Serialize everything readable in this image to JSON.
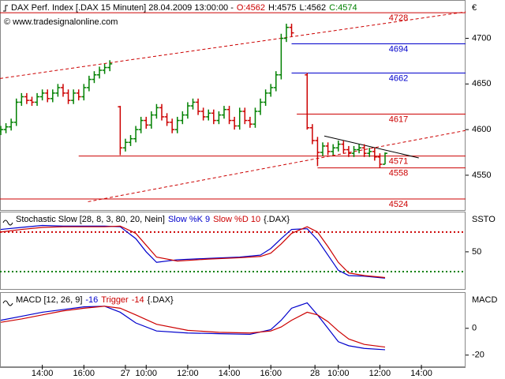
{
  "header": {
    "title": "DAX Perf. Index [.DAX  15 Minuten] 28.04.2009 13:00:00 -",
    "open": "O:4562",
    "high": "H:4575",
    "low": "L:4562",
    "close": "C:4574",
    "copyright": "© www.tradesignalonline.com"
  },
  "chart_data": [
    {
      "type": "ohlc",
      "currency": "€",
      "up_color": "#008000",
      "down_color": "#cc0000",
      "xlim": [
        -0.15,
        89.5
      ],
      "ylim": [
        4511,
        4742
      ],
      "yticks": [
        4550,
        4600,
        4650,
        4700
      ],
      "x": [
        0,
        1,
        2,
        3,
        4,
        5,
        6,
        7,
        8,
        9,
        10,
        11,
        12,
        13,
        14,
        15,
        16,
        17,
        18,
        19,
        20,
        21,
        23,
        24,
        25,
        26,
        27,
        28,
        29,
        30,
        31,
        32,
        33,
        34,
        35,
        36,
        37,
        38,
        39,
        40,
        41,
        42,
        43,
        44,
        45,
        46,
        47,
        48,
        49,
        50,
        51,
        52,
        53,
        54,
        55,
        56,
        59,
        60,
        61,
        62,
        63,
        64,
        65,
        66,
        67,
        68,
        69,
        70,
        71,
        72,
        73,
        74
      ],
      "open": [
        4598,
        4600,
        4603,
        4608,
        4630,
        4636,
        4632,
        4630,
        4636,
        4640,
        4634,
        4640,
        4646,
        4640,
        4632,
        4640,
        4636,
        4646,
        4655,
        4660,
        4665,
        4668,
        4625,
        4580,
        4586,
        4590,
        4600,
        4610,
        4605,
        4616,
        4624,
        4614,
        4608,
        4600,
        4610,
        4616,
        4626,
        4630,
        4620,
        4614,
        4618,
        4610,
        4616,
        4622,
        4610,
        4604,
        4620,
        4610,
        4606,
        4620,
        4630,
        4640,
        4646,
        4660,
        4700,
        4712,
        4660,
        4602,
        4588,
        4575,
        4582,
        4576,
        4580,
        4584,
        4578,
        4574,
        4578,
        4580,
        4574,
        4576,
        4570,
        4562
      ],
      "high": [
        4604,
        4607,
        4612,
        4634,
        4640,
        4640,
        4636,
        4640,
        4644,
        4644,
        4644,
        4650,
        4650,
        4644,
        4644,
        4644,
        4650,
        4659,
        4664,
        4669,
        4672,
        4676,
        4626,
        4590,
        4594,
        4604,
        4614,
        4614,
        4620,
        4628,
        4628,
        4618,
        4612,
        4614,
        4620,
        4630,
        4634,
        4634,
        4624,
        4622,
        4622,
        4620,
        4626,
        4626,
        4614,
        4624,
        4624,
        4614,
        4624,
        4634,
        4644,
        4650,
        4664,
        4705,
        4716,
        4716,
        4662,
        4606,
        4592,
        4586,
        4586,
        4584,
        4588,
        4588,
        4582,
        4582,
        4584,
        4584,
        4580,
        4580,
        4574,
        4575
      ],
      "low": [
        4594,
        4596,
        4599,
        4604,
        4626,
        4628,
        4626,
        4626,
        4632,
        4630,
        4630,
        4636,
        4636,
        4628,
        4628,
        4632,
        4632,
        4642,
        4651,
        4656,
        4661,
        4664,
        4572,
        4576,
        4582,
        4586,
        4596,
        4601,
        4601,
        4612,
        4610,
        4604,
        4596,
        4596,
        4606,
        4612,
        4622,
        4616,
        4610,
        4610,
        4606,
        4606,
        4612,
        4606,
        4600,
        4600,
        4606,
        4602,
        4602,
        4616,
        4626,
        4636,
        4642,
        4655,
        4696,
        4702,
        4600,
        4584,
        4560,
        4571,
        4572,
        4572,
        4576,
        4574,
        4570,
        4570,
        4574,
        4570,
        4570,
        4566,
        4558,
        4562
      ],
      "close": [
        4600,
        4603,
        4608,
        4630,
        4636,
        4632,
        4630,
        4636,
        4640,
        4634,
        4640,
        4646,
        4640,
        4632,
        4640,
        4636,
        4646,
        4655,
        4660,
        4665,
        4668,
        4672,
        4580,
        4586,
        4590,
        4600,
        4610,
        4605,
        4616,
        4624,
        4614,
        4608,
        4600,
        4610,
        4616,
        4626,
        4630,
        4620,
        4614,
        4618,
        4610,
        4616,
        4622,
        4610,
        4604,
        4620,
        4610,
        4606,
        4620,
        4630,
        4640,
        4646,
        4660,
        4700,
        4712,
        4706,
        4602,
        4588,
        4575,
        4582,
        4576,
        4580,
        4584,
        4578,
        4574,
        4578,
        4580,
        4574,
        4576,
        4570,
        4562,
        4574
      ],
      "levels": [
        {
          "value": 4728,
          "start": -0.15,
          "color": "#cc0000"
        },
        {
          "value": 4694,
          "start": 56,
          "color": "#0000cc"
        },
        {
          "value": 4662,
          "start": 56,
          "color": "#0000cc"
        },
        {
          "value": 4617,
          "start": 57,
          "color": "#cc0000"
        },
        {
          "value": 4571,
          "start": 15,
          "color": "#cc0000"
        },
        {
          "value": 4558,
          "start": 61,
          "color": "#cc0000"
        },
        {
          "value": 4524,
          "start": -0.15,
          "color": "#cc0000"
        }
      ],
      "trendlines": [
        {
          "x": [
            -0.15,
            89.5
          ],
          "y": [
            4656,
            4729
          ],
          "color": "#cc0000",
          "dashed": true
        },
        {
          "x": [
            16.8,
            89.5
          ],
          "y": [
            4521,
            4599
          ],
          "color": "#cc0000",
          "dashed": true
        },
        {
          "x": [
            62.3,
            80.5
          ],
          "y": [
            4593,
            4569
          ],
          "color": "#000000",
          "dashed": false
        }
      ]
    },
    {
      "type": "line",
      "title": "Stochastic Slow [28, 8, 3, 80, 20, Nein]",
      "axis_label": "SSTO",
      "suffix": "{.DAX}",
      "xlim": [
        -0.15,
        89.5
      ],
      "ylim": [
        -7.6,
        111
      ],
      "yticks": [
        50
      ],
      "x": [
        0,
        4,
        8,
        12,
        16,
        20,
        23,
        26,
        28,
        30,
        34,
        40,
        46,
        50,
        52,
        54,
        56,
        59,
        61,
        63,
        65,
        67,
        70,
        74
      ],
      "series": [
        {
          "name": "Slow %K 9",
          "color": "#0000cc",
          "values": [
            84,
            87,
            90,
            89,
            89,
            89,
            88,
            70,
            50,
            34,
            38,
            40,
            42,
            45,
            55,
            70,
            84,
            85,
            68,
            45,
            22,
            14,
            13,
            10
          ]
        },
        {
          "name": "Slow %D 10",
          "color": "#cc0000",
          "values": [
            80,
            84,
            87,
            88,
            88,
            88,
            89,
            78,
            60,
            42,
            36,
            39,
            41,
            43,
            48,
            62,
            78,
            88,
            80,
            58,
            34,
            18,
            14,
            11
          ]
        }
      ],
      "levels": [
        {
          "value": 80,
          "color": "#cc0000"
        },
        {
          "value": 20,
          "color": "#008000"
        }
      ]
    },
    {
      "type": "line",
      "title": "MACD [12, 26, 9]",
      "axis_label": "MACD",
      "suffix": "{.DAX}",
      "xlim": [
        -0.15,
        89.5
      ],
      "ylim": [
        -29,
        27
      ],
      "yticks": [
        0,
        -20
      ],
      "xticks": [
        {
          "value": 8,
          "label": "14:00"
        },
        {
          "value": 16,
          "label": "16:00"
        },
        {
          "value": 24,
          "label": "27"
        },
        {
          "value": 28,
          "label": "10:00"
        },
        {
          "value": 36,
          "label": "12:00"
        },
        {
          "value": 44,
          "label": "14:00"
        },
        {
          "value": 52,
          "label": "16:00"
        },
        {
          "value": 60.5,
          "label": "28"
        },
        {
          "value": 65,
          "label": "10:00"
        },
        {
          "value": 73,
          "label": "12:00"
        },
        {
          "value": 81,
          "label": "14:00"
        }
      ],
      "x": [
        0,
        4,
        8,
        12,
        16,
        20,
        23,
        26,
        30,
        36,
        42,
        48,
        52,
        54,
        56,
        59,
        61,
        63,
        65,
        67,
        70,
        74
      ],
      "series": [
        {
          "color": "#0000cc",
          "last": -16,
          "values": [
            6,
            9,
            12,
            14,
            16,
            16.5,
            12,
            4,
            -2,
            -3.5,
            -4,
            -4.5,
            -1,
            6,
            15,
            19,
            10,
            0,
            -10,
            -13,
            -15,
            -16
          ]
        },
        {
          "name": "Trigger",
          "color": "#cc0000",
          "last": -14,
          "values": [
            4.5,
            7,
            10,
            13,
            15,
            16.5,
            15,
            10,
            3,
            -1.5,
            -3,
            -3.5,
            -2,
            1,
            6,
            12,
            10,
            5,
            -2,
            -8,
            -12,
            -14
          ]
        }
      ]
    }
  ]
}
